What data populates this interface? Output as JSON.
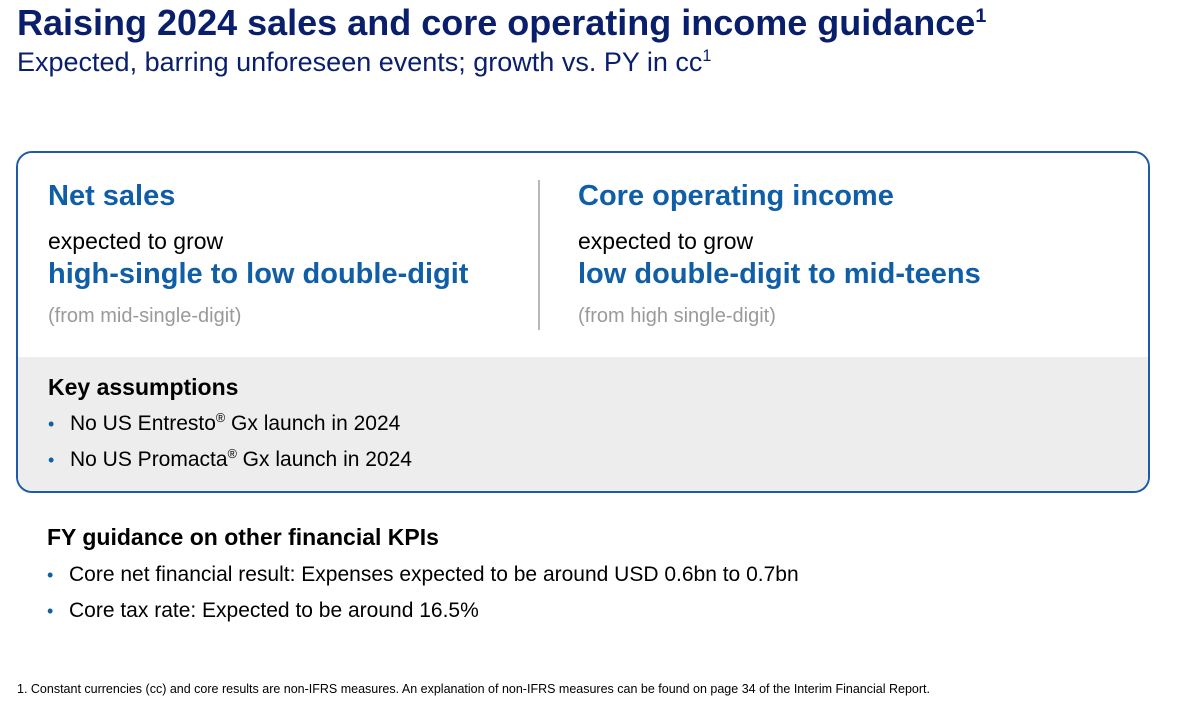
{
  "header": {
    "title": "Raising 2024 sales and core operating income guidance",
    "title_footnote_ref": "1",
    "subtitle": "Expected, barring unforeseen events; growth vs. PY in cc",
    "subtitle_footnote_ref": "1"
  },
  "guidance": {
    "net_sales": {
      "heading": "Net sales",
      "lead": "expected to grow",
      "value": "high-single to low double-digit",
      "prior": "(from mid-single-digit)"
    },
    "core_operating_income": {
      "heading": "Core operating income",
      "lead": "expected to grow",
      "value": "low double-digit to mid-teens",
      "prior": "(from high single-digit)"
    }
  },
  "key_assumptions": {
    "heading": "Key assumptions",
    "items": [
      {
        "prefix": "No US Entresto",
        "mark": "®",
        "suffix": " Gx launch in 2024"
      },
      {
        "prefix": "No US Promacta",
        "mark": "®",
        "suffix": " Gx launch in 2024"
      }
    ]
  },
  "fy_guidance": {
    "heading": "FY guidance on other financial KPIs",
    "items": [
      "Core net financial result: Expenses expected to be around USD 0.6bn to 0.7bn",
      "Core tax rate: Expected to be around 16.5%"
    ]
  },
  "footnote": "1. Constant currencies (cc) and core results are non-IFRS measures. An explanation of non-IFRS measures can be found on page 34 of the Interim Financial Report.",
  "bullet_char": "•",
  "colors": {
    "title": "#0a1f6b",
    "accent": "#0f5ea6",
    "box_border": "#1d5aa8",
    "assumptions_bg": "#ededed",
    "muted": "#9a9a9a"
  }
}
